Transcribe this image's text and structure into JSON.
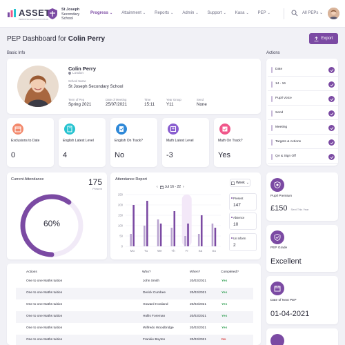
{
  "header": {
    "logo": "ASSET",
    "logo_sub": "PERSONAL EDUCATION PLAN",
    "school_line1": "St Joseph",
    "school_line2": "Secondary",
    "school_line3": "School",
    "nav": [
      {
        "label": "Progress",
        "active": true
      },
      {
        "label": "Attainment",
        "active": false
      },
      {
        "label": "Reports",
        "active": false
      },
      {
        "label": "Admin",
        "active": false
      },
      {
        "label": "Support",
        "active": false
      },
      {
        "label": "Kasa",
        "active": false
      },
      {
        "label": "PEP",
        "active": false
      }
    ],
    "peps_select": "All PEPs",
    "accent": "#7b4aa3"
  },
  "page": {
    "title_prefix": "PEP Dashboard for ",
    "title_name": "Colin Perry",
    "export_label": "Export",
    "basic_info_label": "Basic Info",
    "actions_label": "Actions"
  },
  "student": {
    "name": "Colin Perry",
    "location": "London",
    "school_label": "School Name",
    "school": "St Joseph Secondary School",
    "fields": [
      {
        "label": "Term of Pep",
        "value": "Spring 2021"
      },
      {
        "label": "Date of Meeting",
        "value": "25/07/2021"
      },
      {
        "label": "Time",
        "value": "15:11"
      },
      {
        "label": "Year Group",
        "value": "Y11"
      },
      {
        "label": "Send",
        "value": "None"
      }
    ]
  },
  "stats": [
    {
      "label": "Exclusions to Date",
      "value": "0",
      "color": "#f3896c",
      "icon": "calendar-icon"
    },
    {
      "label": "English Latest Level",
      "value": "4",
      "color": "#26c3d0",
      "icon": "book-icon"
    },
    {
      "label": "English On Track?",
      "value": "No",
      "color": "#2f89d8",
      "icon": "book-check-icon"
    },
    {
      "label": "Math Latest Level",
      "value": "-3",
      "color": "#8a5fd0",
      "icon": "math-icon"
    },
    {
      "label": "Math On Track?",
      "value": "Yes",
      "color": "#f0568a",
      "icon": "math-check-icon"
    }
  ],
  "attendance": {
    "title": "Current Attendance",
    "count": "175",
    "count_label": "Present",
    "percent_label": "60%",
    "fraction": 0.6
  },
  "report": {
    "title": "Attendance Report",
    "range": "Jul 16 - 22",
    "week_label": "Week",
    "present_label": "Present",
    "present_value": "147",
    "absence_label": "Absence",
    "absence_value": "10",
    "uninform_label": "Un Inform",
    "uninform_value": "2"
  },
  "chart_data": {
    "type": "bar",
    "categories": [
      "Mo",
      "Tu",
      "We",
      "Th",
      "Fr",
      "Sa",
      "Su"
    ],
    "yticks": [
      "0",
      "50",
      "100",
      "150",
      "200",
      "250"
    ],
    "ylim": [
      0,
      250
    ],
    "series": [
      {
        "values": [
          60,
          100,
          130,
          90,
          50,
          60,
          110
        ]
      },
      {
        "values": [
          200,
          220,
          110,
          170,
          110,
          150,
          90
        ]
      }
    ],
    "highlight_category": "Fr",
    "colors": [
      "#b8a3cf",
      "#7b4aa3"
    ]
  },
  "table": {
    "headers": [
      "Actions",
      "Who?",
      "When?",
      "Completed?"
    ],
    "rows": [
      {
        "action": "One to one Maths tuition",
        "who": "John Smith",
        "when": "20/02/2021",
        "done": "Yes"
      },
      {
        "action": "One to one Maths tuition",
        "who": "Derick Cumbee",
        "when": "20/02/2021",
        "done": "Yes"
      },
      {
        "action": "One to one Maths tuition",
        "who": "Howard Howland",
        "when": "20/02/2021",
        "done": "Yes"
      },
      {
        "action": "One to one Maths tuition",
        "who": "Hollis Foreman",
        "when": "20/02/2021",
        "done": "Yes"
      },
      {
        "action": "One to one Maths tuition",
        "who": "Wilfredo Woodbridge",
        "when": "20/02/2021",
        "done": "Yes"
      },
      {
        "action": "One to one Maths tuition",
        "who": "Frankie Boyton",
        "when": "20/02/2021",
        "done": "No"
      }
    ]
  },
  "actions": [
    "Date",
    "14 - 16",
    "Pupil Voice",
    "Send",
    "Meeting",
    "Targets & Actions",
    "QA & Sign Off"
  ],
  "side": {
    "premium_label": "Pupil Premium",
    "premium_value": "£150",
    "premium_note": "Sent This Year",
    "grade_label": "PEP Grade",
    "grade_value": "Excellent",
    "next_label": "Date of Next PEP",
    "next_value": "01-04-2021"
  }
}
